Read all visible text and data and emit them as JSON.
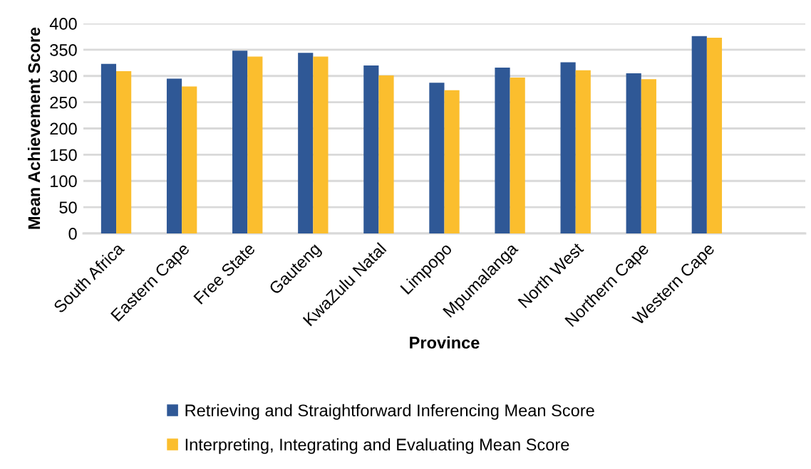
{
  "chart_data": {
    "type": "bar",
    "xlabel": "Province",
    "ylabel": "Mean Achievement Score",
    "categories": [
      "South Africa",
      "Eastern Cape",
      "Free State",
      "Gauteng",
      "KwaZulu Natal",
      "Limpopo",
      "Mpumalanga",
      "North West",
      "Northern Cape",
      "Western Cape",
      null
    ],
    "series": [
      {
        "name": "Retrieving and Straightforward Inferencing Mean Score",
        "color": "#2f5896",
        "values": [
          323,
          295,
          348,
          344,
          320,
          287,
          316,
          326,
          305,
          376,
          null
        ]
      },
      {
        "name": "Interpreting, Integrating and Evaluating Mean Score",
        "color": "#fbbe2e",
        "values": [
          309,
          280,
          337,
          337,
          301,
          273,
          297,
          311,
          294,
          373,
          null
        ]
      }
    ],
    "ylim": [
      0,
      400
    ],
    "yticks": [
      0,
      50,
      100,
      150,
      200,
      250,
      300,
      350,
      400
    ],
    "grid": "y",
    "legend": "bottom"
  }
}
